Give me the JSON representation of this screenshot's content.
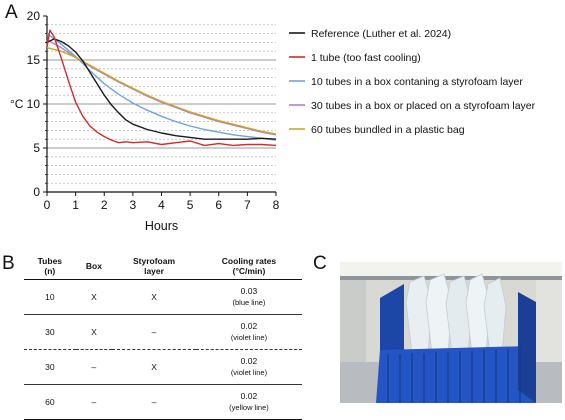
{
  "panels": {
    "a": "A",
    "b": "B",
    "c": "C"
  },
  "chart_data": {
    "type": "line",
    "xlabel": "Hours",
    "ylabel": "°C",
    "xlim": [
      0,
      8
    ],
    "ylim": [
      0,
      20
    ],
    "xticks": [
      0,
      1,
      2,
      3,
      4,
      5,
      6,
      7,
      8
    ],
    "yticks": [
      0,
      5,
      10,
      15,
      20
    ],
    "grid": "dashed horizontal lines at every 1 °C, solid at 5 °C intervals",
    "legend_position": "right",
    "series": [
      {
        "name": "Reference (Luther et al. 2024)",
        "color": "#1a1a1a",
        "x": [
          0,
          0.25,
          0.5,
          0.75,
          1,
          1.25,
          1.5,
          1.75,
          2,
          2.25,
          2.5,
          2.75,
          3,
          3.5,
          4,
          4.5,
          5,
          5.5,
          6,
          6.5,
          7,
          7.5,
          8
        ],
        "y": [
          17.0,
          17.4,
          17.1,
          16.6,
          15.9,
          14.9,
          13.6,
          12.3,
          11.0,
          9.9,
          9.0,
          8.2,
          7.7,
          7.1,
          6.7,
          6.4,
          6.2,
          6.0,
          6.0,
          6.0,
          6.0,
          6.1,
          6.0
        ]
      },
      {
        "name": "1 tube (too fast cooling)",
        "color": "#d42a2a",
        "x": [
          0,
          0.1,
          0.25,
          0.5,
          0.75,
          1,
          1.25,
          1.5,
          1.75,
          2,
          2.25,
          2.5,
          2.75,
          3,
          3.5,
          4,
          4.5,
          5,
          5.5,
          6,
          6.5,
          7,
          7.5,
          8
        ],
        "y": [
          16.5,
          18.4,
          17.6,
          15.2,
          12.6,
          10.2,
          8.6,
          7.5,
          6.8,
          6.3,
          5.9,
          5.6,
          5.7,
          5.6,
          5.7,
          5.4,
          5.6,
          5.8,
          5.3,
          5.5,
          5.3,
          5.4,
          5.4,
          5.3
        ]
      },
      {
        "name": "10 tubes in a box contaning a styrofoam layer",
        "color": "#6fa3e0",
        "x": [
          0,
          0.5,
          1,
          1.5,
          2,
          2.5,
          3,
          3.5,
          4,
          4.5,
          5,
          5.5,
          6,
          6.5,
          7,
          7.5,
          8
        ],
        "y": [
          18.0,
          16.8,
          15.4,
          13.8,
          12.3,
          11.1,
          10.1,
          9.3,
          8.6,
          8.0,
          7.5,
          7.1,
          6.8,
          6.5,
          6.3,
          6.1,
          5.9
        ]
      },
      {
        "name": "30 tubes in a box or placed on a styrofoam layer",
        "color": "#b07fc8",
        "x": [
          0,
          0.5,
          1,
          1.5,
          2,
          2.5,
          3,
          3.5,
          4,
          4.5,
          5,
          5.5,
          6,
          6.5,
          7,
          7.5,
          8
        ],
        "y": [
          17.3,
          16.4,
          15.3,
          14.3,
          13.4,
          12.5,
          11.7,
          10.9,
          10.2,
          9.6,
          9.0,
          8.5,
          8.0,
          7.6,
          7.2,
          6.8,
          6.5
        ]
      },
      {
        "name": "60 tubes bundled in a plastic bag",
        "color": "#c8a826",
        "x": [
          0,
          0.5,
          1,
          1.5,
          2,
          2.5,
          3,
          3.5,
          4,
          4.5,
          5,
          5.5,
          6,
          6.5,
          7,
          7.5,
          8
        ],
        "y": [
          16.4,
          16.0,
          15.3,
          14.4,
          13.5,
          12.6,
          11.8,
          11.0,
          10.3,
          9.7,
          9.1,
          8.6,
          8.1,
          7.7,
          7.3,
          6.9,
          6.6
        ]
      }
    ]
  },
  "table": {
    "headers": [
      "Tubes\n(n)",
      "Box",
      "Styrofoam\nlayer",
      "Cooling rates\n(°C/min)"
    ],
    "rows": [
      {
        "tubes": "10",
        "box": "X",
        "styrofoam": "X",
        "rate": "0.03",
        "line": "(blue line)"
      },
      {
        "tubes": "30",
        "box": "X",
        "styrofoam": "–",
        "rate": "0.02",
        "line": "(violet line)"
      },
      {
        "tubes": "30",
        "box": "–",
        "styrofoam": "X",
        "rate": "0.02",
        "line": "(violet line)"
      },
      {
        "tubes": "60",
        "box": "–",
        "styrofoam": "–",
        "rate": "0.02",
        "line": "(yellow line)"
      }
    ]
  },
  "photo": {
    "colors": {
      "box": "#1f4fb0",
      "fridge": "#e6e6e2",
      "shelf": "#9aa0a6"
    }
  }
}
